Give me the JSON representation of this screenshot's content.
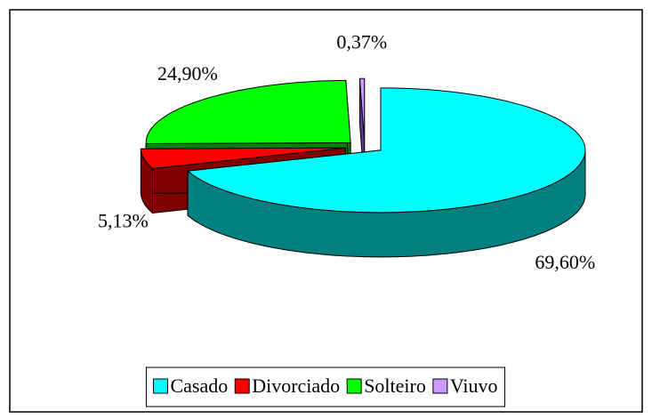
{
  "chart_data": {
    "type": "pie3d",
    "categories": [
      "Casado",
      "Divorciado",
      "Solteiro",
      "Viuvo"
    ],
    "values": [
      69.6,
      5.13,
      24.9,
      0.37
    ],
    "value_labels": [
      "69,60%",
      "5,13%",
      "24,90%",
      "0,37%"
    ],
    "colors": [
      "#00ffff",
      "#ff0000",
      "#00ff00",
      "#cc99ff"
    ],
    "side_colors": [
      "#008080",
      "#800000",
      "#008000",
      "#663399"
    ],
    "legend": "bottom"
  }
}
